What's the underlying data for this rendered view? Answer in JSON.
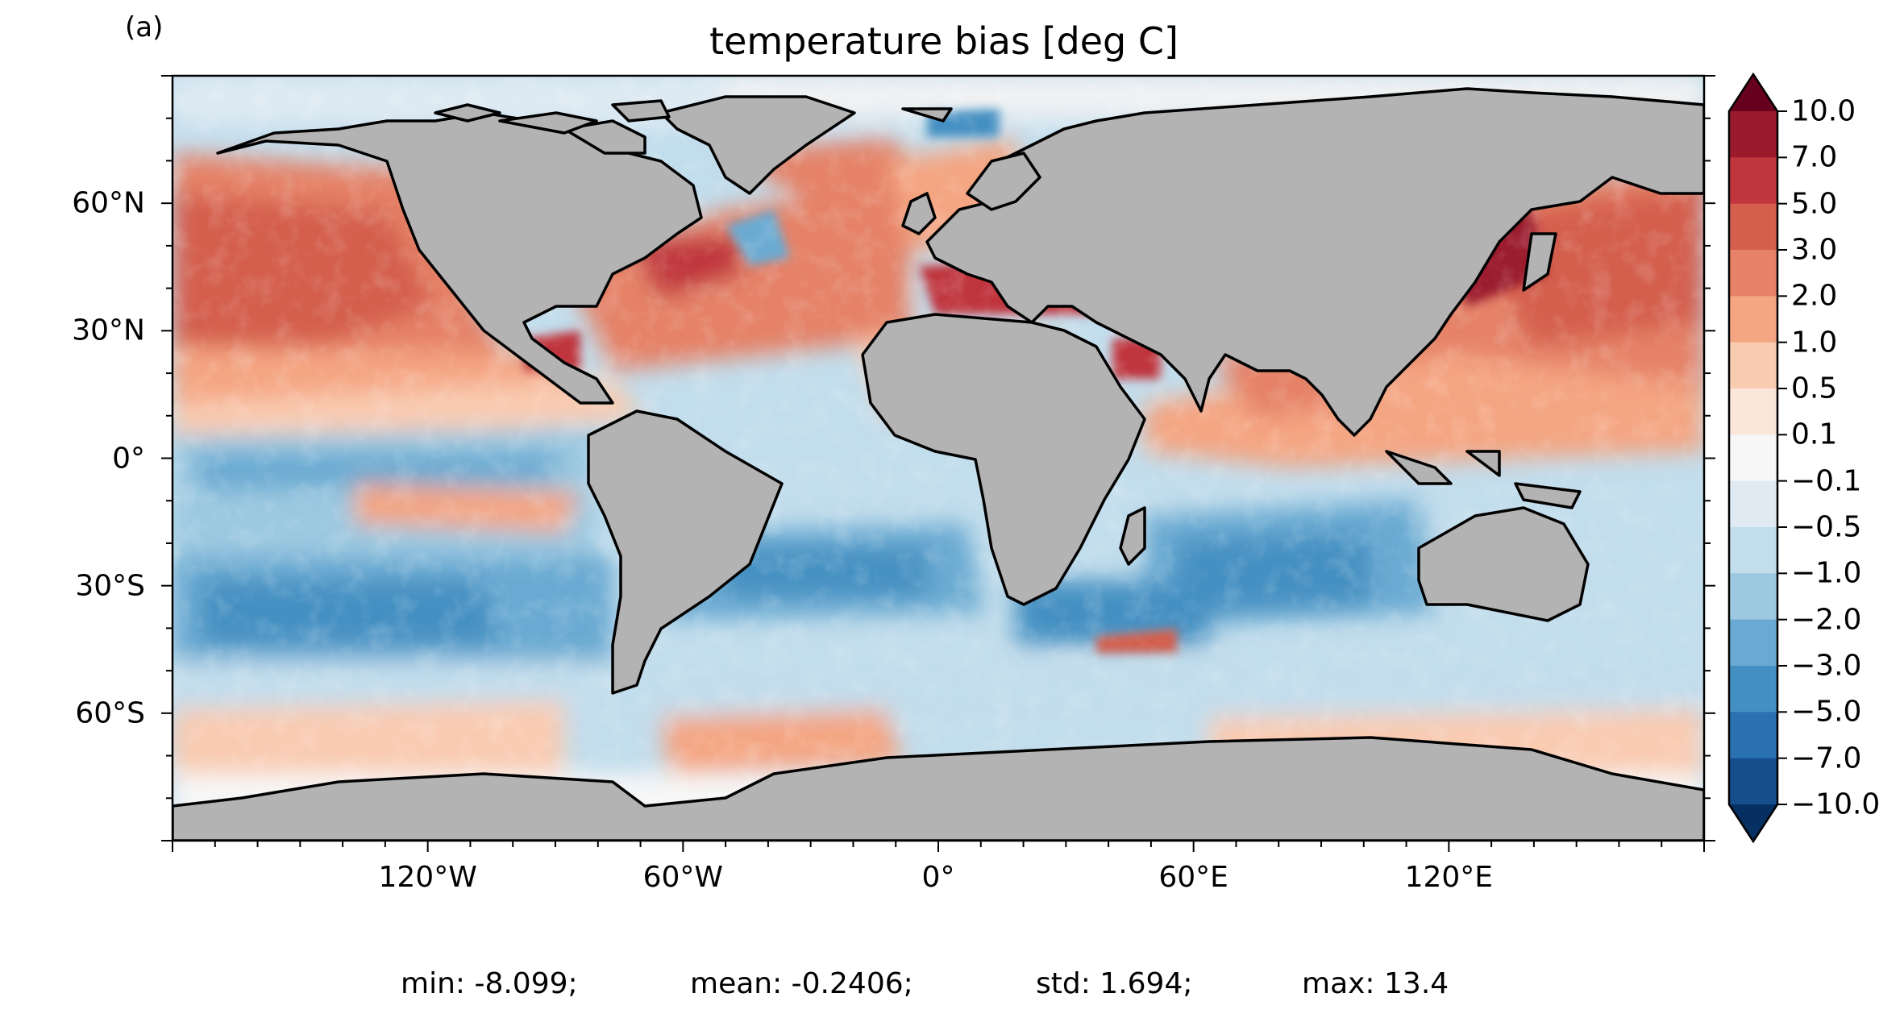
{
  "panel_label": "(a)",
  "title": "temperature bias [deg C]",
  "map": {
    "projection": "PlateCarree",
    "land_color": "#b3b3b3",
    "coastline_color": "#000000",
    "x_ticks": [
      "120°W",
      "60°W",
      "0°",
      "60°E",
      "120°E"
    ],
    "x_tick_lons": [
      -120,
      -60,
      0,
      60,
      120
    ],
    "y_ticks": [
      "60°N",
      "30°N",
      "0°",
      "30°S",
      "60°S"
    ],
    "y_tick_lats": [
      60,
      30,
      0,
      -30,
      -60
    ],
    "lon_range": [
      -180,
      180
    ],
    "lat_range": [
      -90,
      90
    ]
  },
  "colorbar": {
    "colormap": "RdBu_r",
    "extend": "both",
    "labels": [
      "10.0",
      "7.0",
      "5.0",
      "3.0",
      "2.0",
      "1.0",
      "0.5",
      "0.1",
      "−0.1",
      "−0.5",
      "−1.0",
      "−2.0",
      "−3.0",
      "−5.0",
      "−7.0",
      "−10.0"
    ],
    "colors": [
      "#67001f",
      "#9b1b2d",
      "#c0363c",
      "#d45f4d",
      "#e58267",
      "#f4a582",
      "#f9cbb1",
      "#fbe6da",
      "#f7f7f7",
      "#dfeaf3",
      "#c2ddec",
      "#9cc9e1",
      "#6aaad2",
      "#4590c2",
      "#2a71b1",
      "#144e8c",
      "#053061"
    ]
  },
  "stats": {
    "min": "min: -8.099;",
    "mean": "mean: -0.2406;",
    "std": "std: 1.694;",
    "max": "max: 13.4"
  }
}
